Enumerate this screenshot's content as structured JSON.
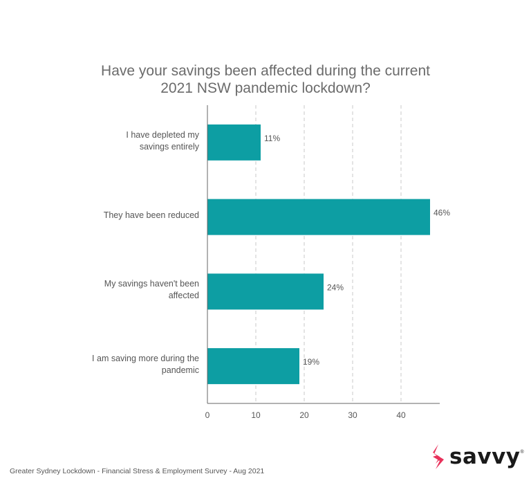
{
  "chart_data": {
    "type": "bar",
    "orientation": "horizontal",
    "title_lines": [
      "Have your savings been affected during the current",
      "2021 NSW pandemic lockdown?"
    ],
    "categories": [
      [
        "I have depleted my",
        "savings entirely"
      ],
      [
        "They have been reduced"
      ],
      [
        "My savings haven't been",
        "affected"
      ],
      [
        "I am saving more during the",
        "pandemic"
      ]
    ],
    "values": [
      11,
      46,
      24,
      19
    ],
    "value_labels": [
      "11%",
      "46%",
      "24%",
      "19%"
    ],
    "xlim": [
      0,
      48
    ],
    "xticks": [
      0,
      10,
      20,
      30,
      40
    ],
    "grid": "vertical-dashed",
    "bar_color": "#0d9ea3"
  },
  "footer": {
    "source": "Greater Sydney Lockdown - Financial Stress & Employment Survey - Aug 2021"
  },
  "brand": {
    "name": "savvy",
    "mark": "®",
    "accent_color": "#e8315b"
  }
}
